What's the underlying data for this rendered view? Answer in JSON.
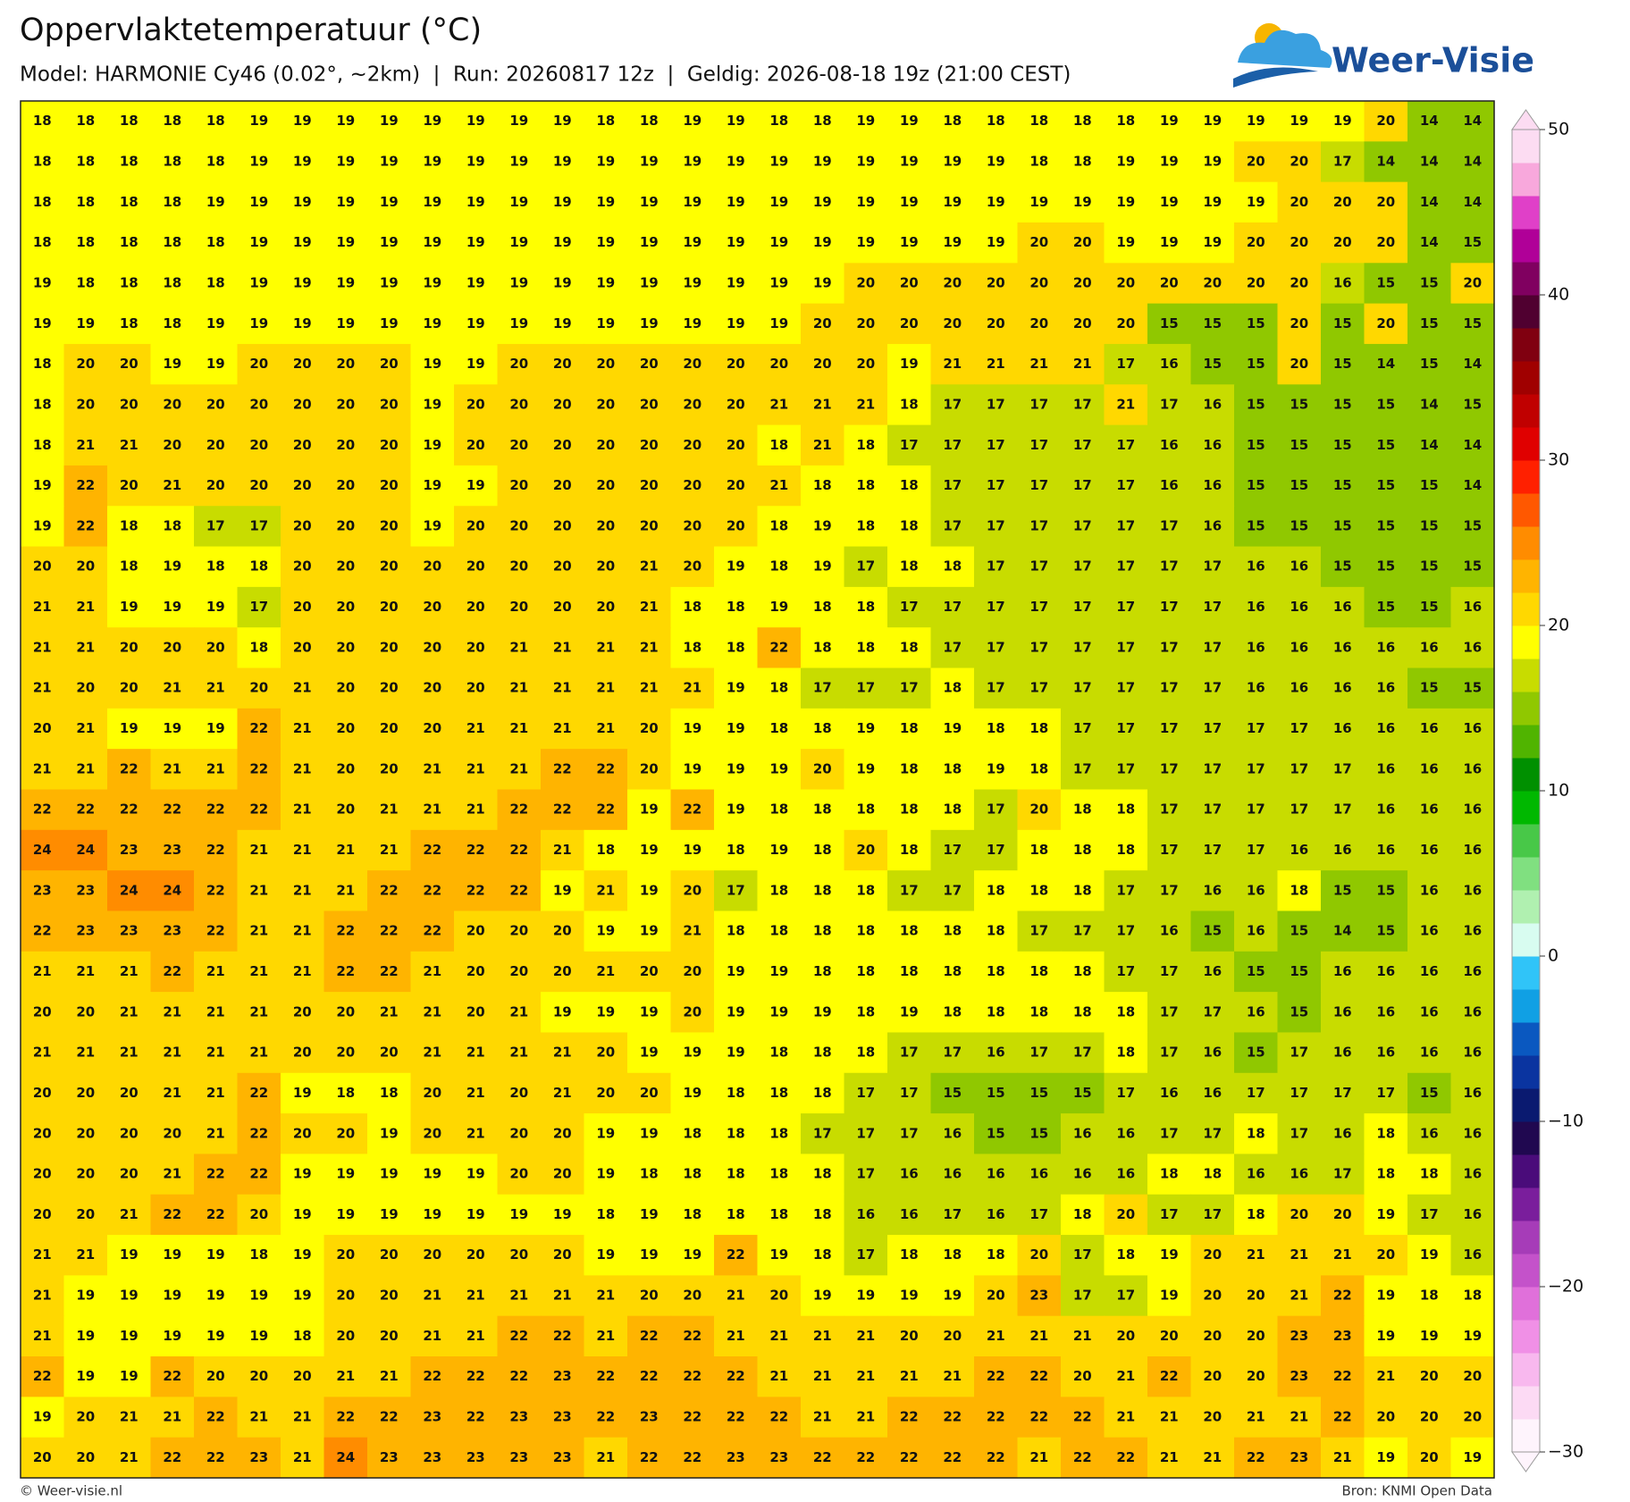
{
  "header": {
    "title": "Oppervlaktetemperatuur (°C)",
    "subtitle": "Model: HARMONIE Cy46 (0.02°, ~2km)  |  Run: 20260817 12z  |  Geldig: 2026-08-18 19z (21:00 CEST)"
  },
  "logo": {
    "text": "Weer-Visie"
  },
  "map": {
    "values": [
      [
        18,
        18,
        18,
        18,
        18,
        19,
        19,
        19,
        19,
        19,
        19,
        19,
        19,
        18,
        18,
        19,
        19,
        18,
        18,
        19,
        19,
        18,
        18,
        18,
        18,
        18,
        19,
        19,
        19,
        19,
        19,
        20,
        14,
        14
      ],
      [
        18,
        18,
        18,
        18,
        18,
        19,
        19,
        19,
        19,
        19,
        19,
        19,
        19,
        19,
        19,
        19,
        19,
        19,
        19,
        19,
        19,
        19,
        19,
        18,
        18,
        19,
        19,
        19,
        20,
        20,
        17,
        14,
        14,
        14
      ],
      [
        18,
        18,
        18,
        18,
        19,
        19,
        19,
        19,
        19,
        19,
        19,
        19,
        19,
        19,
        19,
        19,
        19,
        19,
        19,
        19,
        19,
        19,
        19,
        19,
        19,
        19,
        19,
        19,
        19,
        20,
        20,
        20,
        14,
        14
      ],
      [
        18,
        18,
        18,
        18,
        18,
        19,
        19,
        19,
        19,
        19,
        19,
        19,
        19,
        19,
        19,
        19,
        19,
        19,
        19,
        19,
        19,
        19,
        19,
        20,
        20,
        19,
        19,
        19,
        20,
        20,
        20,
        20,
        14,
        15
      ],
      [
        19,
        18,
        18,
        18,
        18,
        19,
        19,
        19,
        19,
        19,
        19,
        19,
        19,
        19,
        19,
        19,
        19,
        19,
        19,
        20,
        20,
        20,
        20,
        20,
        20,
        20,
        20,
        20,
        20,
        20,
        16,
        15,
        15,
        20
      ],
      [
        19,
        19,
        18,
        18,
        19,
        19,
        19,
        19,
        19,
        19,
        19,
        19,
        19,
        19,
        19,
        19,
        19,
        19,
        20,
        20,
        20,
        20,
        20,
        20,
        20,
        20,
        15,
        15,
        15,
        20,
        15,
        20,
        15,
        15
      ],
      [
        18,
        20,
        20,
        19,
        19,
        20,
        20,
        20,
        20,
        19,
        19,
        20,
        20,
        20,
        20,
        20,
        20,
        20,
        20,
        20,
        19,
        21,
        21,
        21,
        21,
        17,
        16,
        15,
        15,
        20,
        15,
        14,
        15,
        14
      ],
      [
        18,
        20,
        20,
        20,
        20,
        20,
        20,
        20,
        20,
        19,
        20,
        20,
        20,
        20,
        20,
        20,
        20,
        21,
        21,
        21,
        18,
        17,
        17,
        17,
        17,
        21,
        17,
        16,
        15,
        15,
        15,
        15,
        14,
        15
      ],
      [
        18,
        21,
        21,
        20,
        20,
        20,
        20,
        20,
        20,
        19,
        20,
        20,
        20,
        20,
        20,
        20,
        20,
        18,
        21,
        18,
        17,
        17,
        17,
        17,
        17,
        17,
        16,
        16,
        15,
        15,
        15,
        15,
        14,
        14
      ],
      [
        19,
        22,
        20,
        21,
        20,
        20,
        20,
        20,
        20,
        19,
        19,
        20,
        20,
        20,
        20,
        20,
        20,
        21,
        18,
        18,
        18,
        17,
        17,
        17,
        17,
        17,
        16,
        16,
        15,
        15,
        15,
        15,
        15,
        14
      ],
      [
        19,
        22,
        18,
        18,
        17,
        17,
        20,
        20,
        20,
        19,
        20,
        20,
        20,
        20,
        20,
        20,
        20,
        18,
        19,
        18,
        18,
        17,
        17,
        17,
        17,
        17,
        17,
        16,
        15,
        15,
        15,
        15,
        15,
        15
      ],
      [
        20,
        20,
        18,
        19,
        18,
        18,
        20,
        20,
        20,
        20,
        20,
        20,
        20,
        20,
        21,
        20,
        19,
        18,
        19,
        17,
        18,
        18,
        17,
        17,
        17,
        17,
        17,
        17,
        16,
        16,
        15,
        15,
        15,
        15
      ],
      [
        21,
        21,
        19,
        19,
        19,
        17,
        20,
        20,
        20,
        20,
        20,
        20,
        20,
        20,
        21,
        18,
        18,
        19,
        18,
        18,
        17,
        17,
        17,
        17,
        17,
        17,
        17,
        17,
        16,
        16,
        16,
        15,
        15,
        16
      ],
      [
        21,
        21,
        20,
        20,
        20,
        18,
        20,
        20,
        20,
        20,
        20,
        21,
        21,
        21,
        21,
        18,
        18,
        22,
        18,
        18,
        18,
        17,
        17,
        17,
        17,
        17,
        17,
        17,
        16,
        16,
        16,
        16,
        16,
        16
      ],
      [
        21,
        20,
        20,
        21,
        21,
        20,
        21,
        20,
        20,
        20,
        20,
        21,
        21,
        21,
        21,
        21,
        19,
        18,
        17,
        17,
        17,
        18,
        17,
        17,
        17,
        17,
        17,
        17,
        16,
        16,
        16,
        16,
        15,
        15
      ],
      [
        20,
        21,
        19,
        19,
        19,
        22,
        21,
        20,
        20,
        20,
        21,
        21,
        21,
        21,
        20,
        19,
        19,
        18,
        18,
        19,
        18,
        19,
        18,
        18,
        17,
        17,
        17,
        17,
        17,
        17,
        16,
        16,
        16,
        16
      ],
      [
        21,
        21,
        22,
        21,
        21,
        22,
        21,
        20,
        20,
        21,
        21,
        21,
        22,
        22,
        20,
        19,
        19,
        19,
        20,
        19,
        18,
        18,
        19,
        18,
        17,
        17,
        17,
        17,
        17,
        17,
        17,
        16,
        16,
        16
      ],
      [
        22,
        22,
        22,
        22,
        22,
        22,
        21,
        20,
        21,
        21,
        21,
        22,
        22,
        22,
        19,
        22,
        19,
        18,
        18,
        18,
        18,
        18,
        17,
        20,
        18,
        18,
        17,
        17,
        17,
        17,
        17,
        16,
        16,
        16
      ],
      [
        24,
        24,
        23,
        23,
        22,
        21,
        21,
        21,
        21,
        22,
        22,
        22,
        21,
        18,
        19,
        19,
        18,
        19,
        18,
        20,
        18,
        17,
        17,
        18,
        18,
        18,
        17,
        17,
        17,
        16,
        16,
        16,
        16,
        16
      ],
      [
        23,
        23,
        24,
        24,
        22,
        21,
        21,
        21,
        22,
        22,
        22,
        22,
        19,
        21,
        19,
        20,
        17,
        18,
        18,
        18,
        17,
        17,
        18,
        18,
        18,
        17,
        17,
        16,
        16,
        18,
        15,
        15,
        16,
        16
      ],
      [
        22,
        23,
        23,
        23,
        22,
        21,
        21,
        22,
        22,
        22,
        20,
        20,
        20,
        19,
        19,
        21,
        18,
        18,
        18,
        18,
        18,
        18,
        18,
        17,
        17,
        17,
        16,
        15,
        16,
        15,
        14,
        15,
        16,
        16
      ],
      [
        21,
        21,
        21,
        22,
        21,
        21,
        21,
        22,
        22,
        21,
        20,
        20,
        20,
        21,
        20,
        20,
        19,
        19,
        18,
        18,
        18,
        18,
        18,
        18,
        18,
        17,
        17,
        16,
        15,
        15,
        16,
        16,
        16,
        16
      ],
      [
        20,
        20,
        21,
        21,
        21,
        21,
        20,
        20,
        21,
        21,
        20,
        21,
        19,
        19,
        19,
        20,
        19,
        19,
        19,
        18,
        19,
        18,
        18,
        18,
        18,
        18,
        17,
        17,
        16,
        15,
        16,
        16,
        16,
        16
      ],
      [
        21,
        21,
        21,
        21,
        21,
        21,
        20,
        20,
        20,
        21,
        21,
        21,
        21,
        20,
        19,
        19,
        19,
        18,
        18,
        18,
        17,
        17,
        16,
        17,
        17,
        18,
        17,
        16,
        15,
        17,
        16,
        16,
        16,
        16
      ],
      [
        20,
        20,
        20,
        21,
        21,
        22,
        19,
        18,
        18,
        20,
        21,
        20,
        21,
        20,
        20,
        19,
        18,
        18,
        18,
        17,
        17,
        15,
        15,
        15,
        15,
        17,
        16,
        16,
        17,
        17,
        17,
        17,
        15,
        16
      ],
      [
        20,
        20,
        20,
        20,
        21,
        22,
        20,
        20,
        19,
        20,
        21,
        20,
        20,
        19,
        19,
        18,
        18,
        18,
        17,
        17,
        17,
        16,
        15,
        15,
        16,
        16,
        17,
        17,
        18,
        17,
        16,
        18,
        16,
        16
      ],
      [
        20,
        20,
        20,
        21,
        22,
        22,
        19,
        19,
        19,
        19,
        19,
        20,
        20,
        19,
        18,
        18,
        18,
        18,
        18,
        17,
        16,
        16,
        16,
        16,
        16,
        16,
        18,
        18,
        16,
        16,
        17,
        18,
        18,
        16
      ],
      [
        20,
        20,
        21,
        22,
        22,
        20,
        19,
        19,
        19,
        19,
        19,
        19,
        19,
        18,
        19,
        18,
        18,
        18,
        18,
        16,
        16,
        17,
        16,
        17,
        18,
        20,
        17,
        17,
        18,
        20,
        20,
        19,
        17,
        16
      ],
      [
        21,
        21,
        19,
        19,
        19,
        18,
        19,
        20,
        20,
        20,
        20,
        20,
        20,
        19,
        19,
        19,
        22,
        19,
        18,
        17,
        18,
        18,
        18,
        20,
        17,
        18,
        19,
        20,
        21,
        21,
        21,
        20,
        19,
        16
      ],
      [
        21,
        19,
        19,
        19,
        19,
        19,
        19,
        20,
        20,
        21,
        21,
        21,
        21,
        21,
        20,
        20,
        21,
        20,
        19,
        19,
        19,
        19,
        20,
        23,
        17,
        17,
        19,
        20,
        20,
        21,
        22,
        19,
        18,
        18
      ],
      [
        21,
        19,
        19,
        19,
        19,
        19,
        18,
        20,
        20,
        21,
        21,
        22,
        22,
        21,
        22,
        22,
        21,
        21,
        21,
        21,
        20,
        20,
        21,
        21,
        21,
        20,
        20,
        20,
        20,
        23,
        23,
        19,
        19,
        19
      ],
      [
        22,
        19,
        19,
        22,
        20,
        20,
        20,
        21,
        21,
        22,
        22,
        22,
        23,
        22,
        22,
        22,
        22,
        21,
        21,
        21,
        21,
        21,
        22,
        22,
        20,
        21,
        22,
        20,
        20,
        23,
        22,
        21,
        20,
        20
      ],
      [
        19,
        20,
        21,
        21,
        22,
        21,
        21,
        22,
        22,
        23,
        22,
        23,
        23,
        22,
        23,
        22,
        22,
        22,
        21,
        21,
        22,
        22,
        22,
        22,
        22,
        21,
        21,
        20,
        21,
        21,
        22,
        20,
        20,
        20
      ],
      [
        20,
        20,
        21,
        22,
        22,
        23,
        21,
        24,
        23,
        23,
        23,
        23,
        23,
        21,
        22,
        22,
        23,
        23,
        22,
        22,
        22,
        22,
        22,
        21,
        22,
        22,
        21,
        21,
        22,
        23,
        21,
        19,
        20,
        19
      ]
    ]
  },
  "colorbar": {
    "lim": [
      -30,
      50
    ],
    "ticks": [
      {
        "value": -30,
        "label": "−30"
      },
      {
        "value": -20,
        "label": "−20"
      },
      {
        "value": -10,
        "label": "−10"
      },
      0,
      10,
      20,
      30,
      40,
      50
    ],
    "colors": [
      "#fef4fc",
      "#fcdaf4",
      "#f8b8ee",
      "#f090e6",
      "#e070da",
      "#c452ca",
      "#a63cb8",
      "#7a1e9c",
      "#4a0c7a",
      "#200850",
      "#0a1a70",
      "#0a34a0",
      "#0a58c0",
      "#10a0e4",
      "#30c4f8",
      "#d8fcf0",
      "#b0f0b0",
      "#80e080",
      "#48c848",
      "#00b800",
      "#009000",
      "#50b400",
      "#90c800",
      "#c8dc00",
      "#ffff00",
      "#ffd800",
      "#ffb400",
      "#ff8c00",
      "#ff5800",
      "#ff2000",
      "#e00000",
      "#c00000",
      "#a00000",
      "#800010",
      "#500030",
      "#800060",
      "#b00098",
      "#e040c8",
      "#f8a8dc",
      "#fcdcf2"
    ]
  },
  "footer": {
    "left": "© Weer-visie.nl",
    "right": "Bron: KNMI Open Data"
  }
}
